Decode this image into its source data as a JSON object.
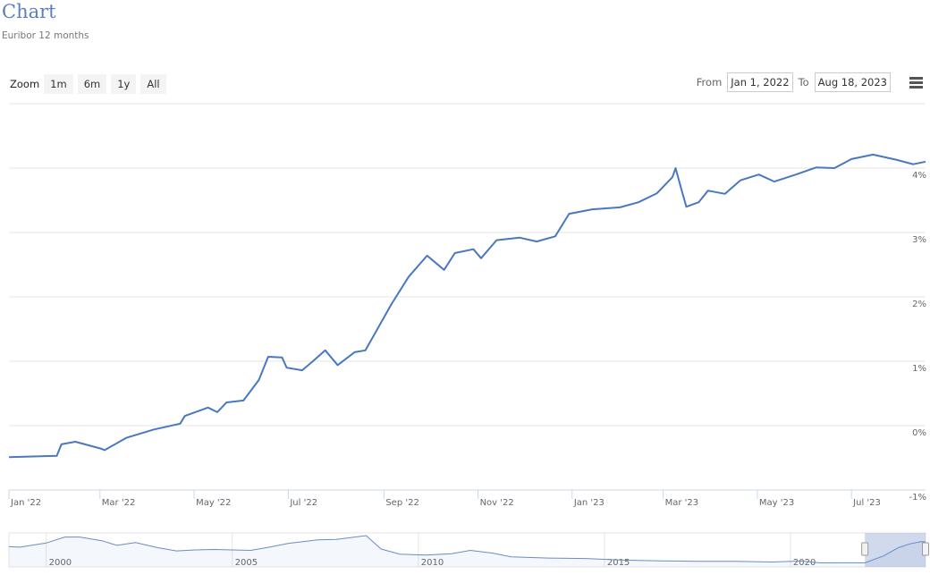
{
  "header": {
    "title": "Chart",
    "subtitle": "Euribor 12 months"
  },
  "zoom": {
    "label": "Zoom",
    "buttons": [
      "1m",
      "6m",
      "1y",
      "All"
    ]
  },
  "range": {
    "from_label": "From",
    "from": "Jan 1, 2022",
    "to_label": "To",
    "to": "Aug 18, 2023"
  },
  "menu_icon": "hamburger-menu-icon",
  "colors": {
    "line": "#4a78bf",
    "grid": "#e6e6e6",
    "navigator_mask": "rgba(102,133,194,0.3)"
  },
  "chart_data": {
    "type": "line",
    "title": "Chart",
    "subtitle": "Euribor 12 months",
    "xlim": [
      "2022-01-01",
      "2023-08-18"
    ],
    "ylim": [
      -1,
      4
    ],
    "grid": true,
    "x_ticks": [
      "Jan '22",
      "Mar '22",
      "May '22",
      "Jul '22",
      "Sep '22",
      "Nov '22",
      "Jan '23",
      "Mar '23",
      "May '23",
      "Jul '23"
    ],
    "x_tick_dates": [
      "2022-01-01",
      "2022-03-01",
      "2022-05-01",
      "2022-07-01",
      "2022-09-01",
      "2022-11-01",
      "2023-01-01",
      "2023-03-01",
      "2023-05-01",
      "2023-07-01"
    ],
    "y_ticks": [
      "-1%",
      "0%",
      "1%",
      "2%",
      "3%",
      "4%"
    ],
    "y_tick_values": [
      -1,
      0,
      1,
      2,
      3,
      4
    ],
    "series": [
      {
        "values": [
          [
            "2022-01-01",
            -0.49
          ],
          [
            "2022-02-01",
            -0.47
          ],
          [
            "2022-02-04",
            -0.29
          ],
          [
            "2022-02-13",
            -0.25
          ],
          [
            "2022-03-02",
            -0.36
          ],
          [
            "2022-03-04",
            -0.38
          ],
          [
            "2022-03-18",
            -0.19
          ],
          [
            "2022-04-05",
            -0.06
          ],
          [
            "2022-04-22",
            0.03
          ],
          [
            "2022-04-25",
            0.15
          ],
          [
            "2022-05-10",
            0.28
          ],
          [
            "2022-05-16",
            0.21
          ],
          [
            "2022-05-22",
            0.36
          ],
          [
            "2022-06-02",
            0.39
          ],
          [
            "2022-06-12",
            0.71
          ],
          [
            "2022-06-18",
            1.07
          ],
          [
            "2022-06-27",
            1.06
          ],
          [
            "2022-06-30",
            0.9
          ],
          [
            "2022-07-10",
            0.86
          ],
          [
            "2022-07-17",
            1.0
          ],
          [
            "2022-07-25",
            1.17
          ],
          [
            "2022-08-02",
            0.94
          ],
          [
            "2022-08-13",
            1.14
          ],
          [
            "2022-08-20",
            1.17
          ],
          [
            "2022-09-06",
            1.89
          ],
          [
            "2022-09-17",
            2.31
          ],
          [
            "2022-09-29",
            2.64
          ],
          [
            "2022-10-10",
            2.42
          ],
          [
            "2022-10-17",
            2.68
          ],
          [
            "2022-10-29",
            2.74
          ],
          [
            "2022-11-03",
            2.6
          ],
          [
            "2022-11-13",
            2.88
          ],
          [
            "2022-11-28",
            2.92
          ],
          [
            "2022-12-09",
            2.86
          ],
          [
            "2022-12-21",
            2.94
          ],
          [
            "2022-12-30",
            3.29
          ],
          [
            "2023-01-14",
            3.36
          ],
          [
            "2023-02-01",
            3.39
          ],
          [
            "2023-02-13",
            3.47
          ],
          [
            "2023-02-25",
            3.61
          ],
          [
            "2023-03-07",
            3.86
          ],
          [
            "2023-03-09",
            4.0
          ],
          [
            "2023-03-13",
            3.65
          ],
          [
            "2023-03-16",
            3.4
          ],
          [
            "2023-03-24",
            3.47
          ],
          [
            "2023-03-30",
            3.65
          ],
          [
            "2023-04-10",
            3.6
          ],
          [
            "2023-04-20",
            3.81
          ],
          [
            "2023-05-02",
            3.9
          ],
          [
            "2023-05-12",
            3.79
          ],
          [
            "2023-05-26",
            3.9
          ],
          [
            "2023-06-08",
            4.01
          ],
          [
            "2023-06-20",
            4.0
          ],
          [
            "2023-07-01",
            4.14
          ],
          [
            "2023-07-15",
            4.21
          ],
          [
            "2023-07-30",
            4.13
          ],
          [
            "2023-08-10",
            4.06
          ],
          [
            "2023-08-18",
            4.1
          ]
        ]
      }
    ],
    "navigator": {
      "x_ticks": [
        "2000",
        "2005",
        "2010",
        "2015",
        "2020"
      ],
      "xlim": [
        1999,
        2023.63
      ],
      "selected": [
        "2022-01-01",
        "2023-08-18"
      ],
      "values": [
        [
          1999.0,
          3.0
        ],
        [
          1999.3,
          2.9
        ],
        [
          2000.0,
          3.8
        ],
        [
          2000.5,
          5.1
        ],
        [
          2000.9,
          5.1
        ],
        [
          2001.5,
          4.3
        ],
        [
          2001.9,
          3.3
        ],
        [
          2002.4,
          3.9
        ],
        [
          2003.0,
          2.8
        ],
        [
          2003.5,
          2.1
        ],
        [
          2004.0,
          2.3
        ],
        [
          2004.5,
          2.4
        ],
        [
          2005.5,
          2.2
        ],
        [
          2006.0,
          2.9
        ],
        [
          2006.5,
          3.7
        ],
        [
          2007.3,
          4.5
        ],
        [
          2007.8,
          4.6
        ],
        [
          2008.6,
          5.4
        ],
        [
          2009.0,
          2.5
        ],
        [
          2009.5,
          1.4
        ],
        [
          2010.2,
          1.2
        ],
        [
          2010.9,
          1.5
        ],
        [
          2011.4,
          2.2
        ],
        [
          2012.0,
          1.6
        ],
        [
          2012.5,
          0.8
        ],
        [
          2013.5,
          0.55
        ],
        [
          2014.5,
          0.45
        ],
        [
          2015.5,
          0.1
        ],
        [
          2016.5,
          -0.05
        ],
        [
          2017.5,
          -0.15
        ],
        [
          2018.5,
          -0.18
        ],
        [
          2019.5,
          -0.3
        ],
        [
          2020.3,
          -0.1
        ],
        [
          2020.8,
          -0.5
        ],
        [
          2021.5,
          -0.49
        ],
        [
          2022.0,
          -0.5
        ],
        [
          2022.5,
          1.0
        ],
        [
          2022.9,
          2.8
        ],
        [
          2023.2,
          3.6
        ],
        [
          2023.5,
          4.1
        ],
        [
          2023.63,
          4.05
        ]
      ]
    }
  }
}
